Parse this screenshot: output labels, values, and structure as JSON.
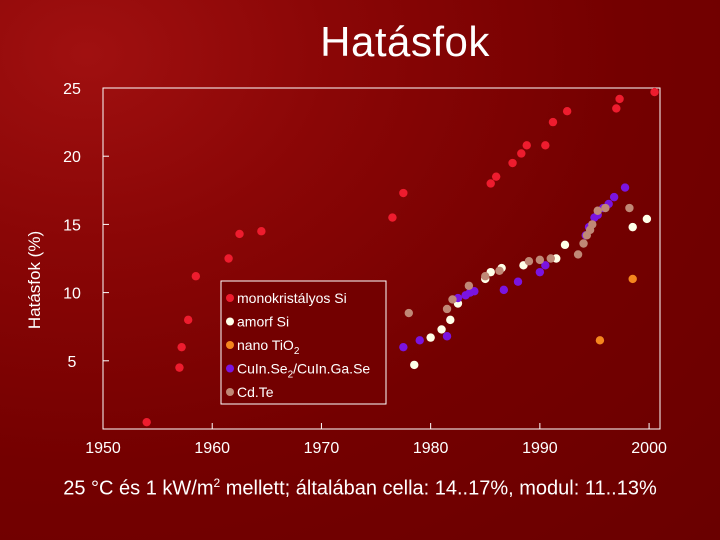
{
  "title": "Hatásfok",
  "caption": {
    "part1": "25 °C és 1 kW/m",
    "sup": "2",
    "part2": " mellett; általában cella: 14..17%, modul: 11..13%"
  },
  "chart_data": {
    "type": "scatter",
    "title": "Hatásfok",
    "xlabel": "",
    "ylabel": "Hatásfok (%)",
    "xlim": [
      1950,
      2001
    ],
    "ylim": [
      0,
      25
    ],
    "x_ticks": [
      1950,
      1960,
      1970,
      1980,
      1990,
      2000
    ],
    "y_ticks": [
      5,
      10,
      15,
      20,
      25
    ],
    "legend_position": "center",
    "series": [
      {
        "name": "monokristályos Si",
        "legend_label": "monokristályos Si",
        "color": "#ee1c2e",
        "points": [
          [
            1954,
            0.5
          ],
          [
            1957,
            4.5
          ],
          [
            1957.2,
            6
          ],
          [
            1957.8,
            8
          ],
          [
            1958.5,
            11.2
          ],
          [
            1961.5,
            12.5
          ],
          [
            1962.5,
            14.3
          ],
          [
            1964.5,
            14.5
          ],
          [
            1976.5,
            15.5
          ],
          [
            1977.5,
            17.3
          ],
          [
            1985.5,
            18
          ],
          [
            1986,
            18.5
          ],
          [
            1987.5,
            19.5
          ],
          [
            1988.3,
            20.2
          ],
          [
            1988.8,
            20.8
          ],
          [
            1990.5,
            20.8
          ],
          [
            1991.2,
            22.5
          ],
          [
            1992.5,
            23.3
          ],
          [
            1997,
            23.5
          ],
          [
            1997.3,
            24.2
          ],
          [
            2000.5,
            24.7
          ]
        ]
      },
      {
        "name": "amorf Si",
        "legend_label": "amorf Si",
        "color": "#ffffe8",
        "points": [
          [
            1978.5,
            4.7
          ],
          [
            1980,
            6.7
          ],
          [
            1981,
            7.3
          ],
          [
            1981.8,
            8
          ],
          [
            1982.5,
            9.2
          ],
          [
            1985,
            11
          ],
          [
            1985.5,
            11.5
          ],
          [
            1986.5,
            11.8
          ],
          [
            1988.5,
            12
          ],
          [
            1991.5,
            12.5
          ],
          [
            1992.3,
            13.5
          ],
          [
            1998.5,
            14.8
          ],
          [
            1999.8,
            15.4
          ]
        ]
      },
      {
        "name": "nano TiO2",
        "legend_label": "nano TiO",
        "legend_sub": "2",
        "color": "#f4861e",
        "points": [
          [
            1995.5,
            6.5
          ],
          [
            1998.5,
            11
          ]
        ]
      },
      {
        "name": "CuInSe2/CuIn.Ga.Se",
        "legend_label": "CuIn.Se",
        "legend_sub": "2",
        "legend_suffix": "/CuIn.Ga.Se",
        "color": "#7a14e0",
        "points": [
          [
            1977.5,
            6
          ],
          [
            1979,
            6.5
          ],
          [
            1981.5,
            6.8
          ],
          [
            1982.5,
            9.6
          ],
          [
            1983.2,
            9.8
          ],
          [
            1983.6,
            10
          ],
          [
            1984,
            10.1
          ],
          [
            1986.7,
            10.2
          ],
          [
            1988,
            10.8
          ],
          [
            1990,
            11.5
          ],
          [
            1990.5,
            12
          ],
          [
            1994.2,
            14.2
          ],
          [
            1994.5,
            14.8
          ],
          [
            1995,
            15.5
          ],
          [
            1995.3,
            15.7
          ],
          [
            1995.8,
            16.2
          ],
          [
            1996.3,
            16.5
          ],
          [
            1996.8,
            17
          ],
          [
            1997.8,
            17.7
          ]
        ]
      },
      {
        "name": "CdTe",
        "legend_label": "Cd.Te",
        "color": "#c08876",
        "points": [
          [
            1978,
            8.5
          ],
          [
            1981.5,
            8.8
          ],
          [
            1982,
            9.5
          ],
          [
            1983.5,
            10.5
          ],
          [
            1985,
            11.2
          ],
          [
            1986.3,
            11.6
          ],
          [
            1989,
            12.3
          ],
          [
            1990,
            12.4
          ],
          [
            1991,
            12.5
          ],
          [
            1993.5,
            12.8
          ],
          [
            1994,
            13.6
          ],
          [
            1994.3,
            14.2
          ],
          [
            1994.6,
            14.6
          ],
          [
            1994.8,
            15
          ],
          [
            1995.3,
            16
          ],
          [
            1996,
            16.2
          ],
          [
            1998.2,
            16.2
          ]
        ]
      }
    ]
  }
}
